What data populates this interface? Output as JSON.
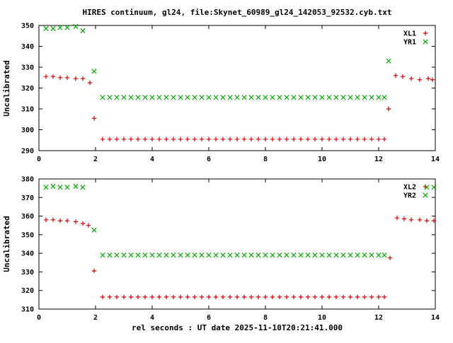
{
  "title": "HIRES continuum, gl24, file:Skynet_60989_gl24_142053_92532.cyb.txt",
  "xlabel": "rel seconds : UT date 2025-11-10T20:21:41.000",
  "colors": {
    "red": "#dd0000",
    "green": "#00aa00",
    "axis": "#000000"
  },
  "chart_data": [
    {
      "type": "scatter",
      "panel": "top",
      "ylabel": "Uncalibrated",
      "xlim": [
        0,
        14
      ],
      "ylim": [
        290,
        350
      ],
      "xticks": [
        0,
        2,
        4,
        6,
        8,
        10,
        12,
        14
      ],
      "yticks": [
        290,
        300,
        310,
        320,
        330,
        340,
        350
      ],
      "grid": false,
      "legend_position": "top-right",
      "series": [
        {
          "name": "XL1",
          "color": "red",
          "marker": "plus",
          "points": [
            [
              0.25,
              325.5
            ],
            [
              0.5,
              325.5
            ],
            [
              0.75,
              325
            ],
            [
              1.0,
              325
            ],
            [
              1.3,
              324.5
            ],
            [
              1.55,
              324.5
            ],
            [
              1.8,
              322.5
            ],
            [
              1.95,
              305.5
            ],
            [
              2.25,
              295.5
            ],
            [
              2.5,
              295.5
            ],
            [
              2.75,
              295.5
            ],
            [
              3,
              295.5
            ],
            [
              3.25,
              295.5
            ],
            [
              3.5,
              295.5
            ],
            [
              3.75,
              295.5
            ],
            [
              4,
              295.5
            ],
            [
              4.25,
              295.5
            ],
            [
              4.5,
              295.5
            ],
            [
              4.75,
              295.5
            ],
            [
              5,
              295.5
            ],
            [
              5.25,
              295.5
            ],
            [
              5.5,
              295.5
            ],
            [
              5.75,
              295.5
            ],
            [
              6,
              295.5
            ],
            [
              6.25,
              295.5
            ],
            [
              6.5,
              295.5
            ],
            [
              6.75,
              295.5
            ],
            [
              7,
              295.5
            ],
            [
              7.25,
              295.5
            ],
            [
              7.5,
              295.5
            ],
            [
              7.75,
              295.5
            ],
            [
              8,
              295.5
            ],
            [
              8.25,
              295.5
            ],
            [
              8.5,
              295.5
            ],
            [
              8.75,
              295.5
            ],
            [
              9,
              295.5
            ],
            [
              9.25,
              295.5
            ],
            [
              9.5,
              295.5
            ],
            [
              9.75,
              295.5
            ],
            [
              10,
              295.5
            ],
            [
              10.25,
              295.5
            ],
            [
              10.5,
              295.5
            ],
            [
              10.75,
              295.5
            ],
            [
              11,
              295.5
            ],
            [
              11.25,
              295.5
            ],
            [
              11.5,
              295.5
            ],
            [
              11.75,
              295.5
            ],
            [
              12,
              295.5
            ],
            [
              12.2,
              295.5
            ],
            [
              12.35,
              310
            ],
            [
              12.6,
              326
            ],
            [
              12.85,
              325.5
            ],
            [
              13.15,
              324.5
            ],
            [
              13.45,
              324
            ],
            [
              13.75,
              324.5
            ],
            [
              13.9,
              324
            ]
          ]
        },
        {
          "name": "YR1",
          "color": "green",
          "marker": "cross",
          "points": [
            [
              0.25,
              348.5
            ],
            [
              0.5,
              348.5
            ],
            [
              0.75,
              349
            ],
            [
              1.0,
              349
            ],
            [
              1.3,
              349.5
            ],
            [
              1.55,
              347.5
            ],
            [
              1.95,
              328
            ],
            [
              2.25,
              315.5
            ],
            [
              2.5,
              315.5
            ],
            [
              2.75,
              315.5
            ],
            [
              3,
              315.5
            ],
            [
              3.25,
              315.5
            ],
            [
              3.5,
              315.5
            ],
            [
              3.75,
              315.5
            ],
            [
              4,
              315.5
            ],
            [
              4.25,
              315.5
            ],
            [
              4.5,
              315.5
            ],
            [
              4.75,
              315.5
            ],
            [
              5,
              315.5
            ],
            [
              5.25,
              315.5
            ],
            [
              5.5,
              315.5
            ],
            [
              5.75,
              315.5
            ],
            [
              6,
              315.5
            ],
            [
              6.25,
              315.5
            ],
            [
              6.5,
              315.5
            ],
            [
              6.75,
              315.5
            ],
            [
              7,
              315.5
            ],
            [
              7.25,
              315.5
            ],
            [
              7.5,
              315.5
            ],
            [
              7.75,
              315.5
            ],
            [
              8,
              315.5
            ],
            [
              8.25,
              315.5
            ],
            [
              8.5,
              315.5
            ],
            [
              8.75,
              315.5
            ],
            [
              9,
              315.5
            ],
            [
              9.25,
              315.5
            ],
            [
              9.5,
              315.5
            ],
            [
              9.75,
              315.5
            ],
            [
              10,
              315.5
            ],
            [
              10.25,
              315.5
            ],
            [
              10.5,
              315.5
            ],
            [
              10.75,
              315.5
            ],
            [
              11,
              315.5
            ],
            [
              11.25,
              315.5
            ],
            [
              11.5,
              315.5
            ],
            [
              11.75,
              315.5
            ],
            [
              12,
              315.5
            ],
            [
              12.2,
              315.5
            ],
            [
              12.35,
              333
            ]
          ]
        }
      ]
    },
    {
      "type": "scatter",
      "panel": "bottom",
      "ylabel": "Uncalibrated",
      "xlim": [
        0,
        14
      ],
      "ylim": [
        310,
        380
      ],
      "xticks": [
        0,
        2,
        4,
        6,
        8,
        10,
        12,
        14
      ],
      "yticks": [
        310,
        320,
        330,
        340,
        350,
        360,
        370,
        380
      ],
      "grid": false,
      "legend_position": "top-right",
      "series": [
        {
          "name": "XL2",
          "color": "red",
          "marker": "plus",
          "points": [
            [
              0.25,
              358
            ],
            [
              0.5,
              358
            ],
            [
              0.75,
              357.5
            ],
            [
              1.0,
              357.5
            ],
            [
              1.3,
              357
            ],
            [
              1.55,
              356
            ],
            [
              1.75,
              355
            ],
            [
              1.95,
              330.5
            ],
            [
              2.25,
              316.5
            ],
            [
              2.5,
              316.5
            ],
            [
              2.75,
              316.5
            ],
            [
              3,
              316.5
            ],
            [
              3.25,
              316.5
            ],
            [
              3.5,
              316.5
            ],
            [
              3.75,
              316.5
            ],
            [
              4,
              316.5
            ],
            [
              4.25,
              316.5
            ],
            [
              4.5,
              316.5
            ],
            [
              4.75,
              316.5
            ],
            [
              5,
              316.5
            ],
            [
              5.25,
              316.5
            ],
            [
              5.5,
              316.5
            ],
            [
              5.75,
              316.5
            ],
            [
              6,
              316.5
            ],
            [
              6.25,
              316.5
            ],
            [
              6.5,
              316.5
            ],
            [
              6.75,
              316.5
            ],
            [
              7,
              316.5
            ],
            [
              7.25,
              316.5
            ],
            [
              7.5,
              316.5
            ],
            [
              7.75,
              316.5
            ],
            [
              8,
              316.5
            ],
            [
              8.25,
              316.5
            ],
            [
              8.5,
              316.5
            ],
            [
              8.75,
              316.5
            ],
            [
              9,
              316.5
            ],
            [
              9.25,
              316.5
            ],
            [
              9.5,
              316.5
            ],
            [
              9.75,
              316.5
            ],
            [
              10,
              316.5
            ],
            [
              10.25,
              316.5
            ],
            [
              10.5,
              316.5
            ],
            [
              10.75,
              316.5
            ],
            [
              11,
              316.5
            ],
            [
              11.25,
              316.5
            ],
            [
              11.5,
              316.5
            ],
            [
              11.75,
              316.5
            ],
            [
              12,
              316.5
            ],
            [
              12.2,
              316.5
            ],
            [
              12.4,
              337.5
            ],
            [
              12.65,
              359
            ],
            [
              12.9,
              358.5
            ],
            [
              13.15,
              358
            ],
            [
              13.45,
              358
            ],
            [
              13.7,
              357.5
            ],
            [
              13.95,
              357.5
            ]
          ]
        },
        {
          "name": "YR2",
          "color": "green",
          "marker": "cross",
          "points": [
            [
              0.25,
              375.5
            ],
            [
              0.5,
              376
            ],
            [
              0.75,
              375.5
            ],
            [
              1.0,
              375.5
            ],
            [
              1.3,
              376
            ],
            [
              1.55,
              375.5
            ],
            [
              1.95,
              352.5
            ],
            [
              2.25,
              339
            ],
            [
              2.5,
              339
            ],
            [
              2.75,
              339
            ],
            [
              3,
              339
            ],
            [
              3.25,
              339
            ],
            [
              3.5,
              339
            ],
            [
              3.75,
              339
            ],
            [
              4,
              339
            ],
            [
              4.25,
              339
            ],
            [
              4.5,
              339
            ],
            [
              4.75,
              339
            ],
            [
              5,
              339
            ],
            [
              5.25,
              339
            ],
            [
              5.5,
              339
            ],
            [
              5.75,
              339
            ],
            [
              6,
              339
            ],
            [
              6.25,
              339
            ],
            [
              6.5,
              339
            ],
            [
              6.75,
              339
            ],
            [
              7,
              339
            ],
            [
              7.25,
              339
            ],
            [
              7.5,
              339
            ],
            [
              7.75,
              339
            ],
            [
              8,
              339
            ],
            [
              8.25,
              339
            ],
            [
              8.5,
              339
            ],
            [
              8.75,
              339
            ],
            [
              9,
              339
            ],
            [
              9.25,
              339
            ],
            [
              9.5,
              339
            ],
            [
              9.75,
              339
            ],
            [
              10,
              339
            ],
            [
              10.25,
              339
            ],
            [
              10.5,
              339
            ],
            [
              10.75,
              339
            ],
            [
              11,
              339
            ],
            [
              11.25,
              339
            ],
            [
              11.5,
              339
            ],
            [
              11.75,
              339
            ],
            [
              12,
              339
            ],
            [
              12.2,
              339
            ],
            [
              13.7,
              375.5
            ],
            [
              13.95,
              375.5
            ]
          ]
        }
      ]
    }
  ]
}
